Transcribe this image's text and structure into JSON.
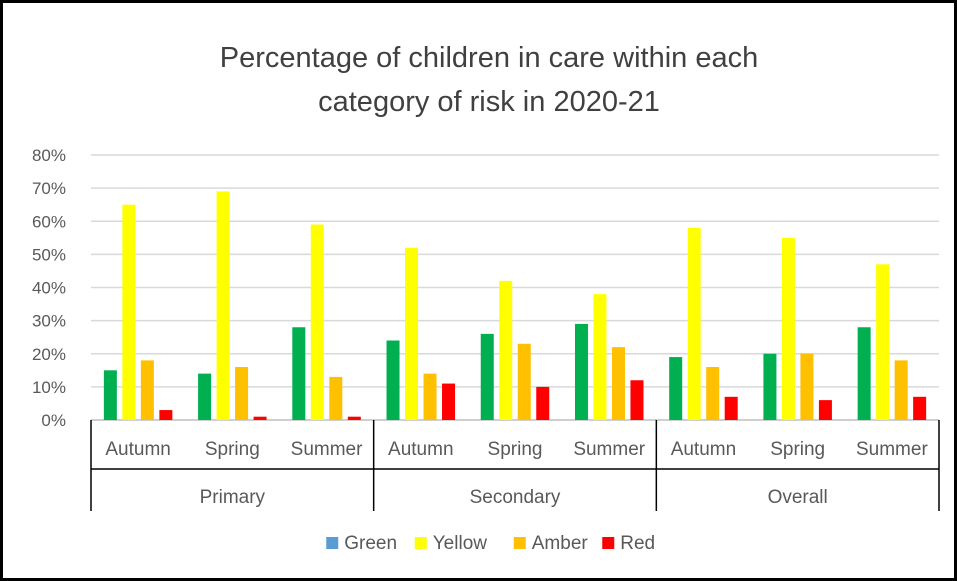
{
  "chart_data": {
    "type": "bar",
    "title_lines": [
      "Percentage of children in care within each",
      "category of risk in 2020-21"
    ],
    "groups": [
      "Primary",
      "Secondary",
      "Overall"
    ],
    "terms": [
      "Autumn",
      "Spring",
      "Summer"
    ],
    "categories": [
      {
        "group": "Primary",
        "term": "Autumn"
      },
      {
        "group": "Primary",
        "term": "Spring"
      },
      {
        "group": "Primary",
        "term": "Summer"
      },
      {
        "group": "Secondary",
        "term": "Autumn"
      },
      {
        "group": "Secondary",
        "term": "Spring"
      },
      {
        "group": "Secondary",
        "term": "Summer"
      },
      {
        "group": "Overall",
        "term": "Autumn"
      },
      {
        "group": "Overall",
        "term": "Spring"
      },
      {
        "group": "Overall",
        "term": "Summer"
      }
    ],
    "series": [
      {
        "name": "Green",
        "legend_color": "#5b9bd5",
        "color": "#00b050",
        "values": [
          15,
          14,
          28,
          24,
          26,
          29,
          19,
          20,
          28
        ]
      },
      {
        "name": "Yellow",
        "legend_color": "#ffff00",
        "color": "#ffff00",
        "values": [
          65,
          69,
          59,
          52,
          42,
          38,
          58,
          55,
          47
        ]
      },
      {
        "name": "Amber",
        "legend_color": "#ffc000",
        "color": "#ffc000",
        "values": [
          18,
          16,
          13,
          14,
          23,
          22,
          16,
          20,
          18
        ]
      },
      {
        "name": "Red",
        "legend_color": "#ff0000",
        "color": "#ff0000",
        "values": [
          3,
          1,
          1,
          11,
          10,
          12,
          7,
          6,
          7
        ]
      }
    ],
    "y_ticks": [
      "0%",
      "10%",
      "20%",
      "30%",
      "40%",
      "50%",
      "60%",
      "70%",
      "80%"
    ],
    "ylim": [
      0,
      80
    ],
    "y_unit": "%",
    "grid": true,
    "legend_position": "bottom"
  }
}
